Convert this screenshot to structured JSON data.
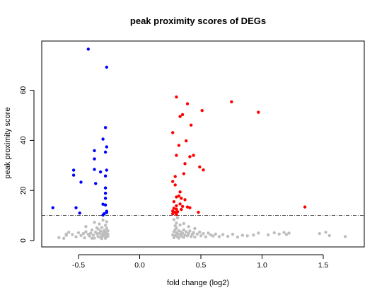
{
  "chart_data": {
    "type": "scatter",
    "title": "peak proximity scores of DEGs",
    "xlabel": "fold change (log2)",
    "ylabel": "peak proximity score",
    "xlim": [
      -0.72,
      1.7
    ],
    "ylim": [
      0,
      76.4
    ],
    "x_ticks": [
      -0.5,
      0.0,
      0.5,
      1.0,
      1.5
    ],
    "x_tick_labels": [
      "-0.5",
      "0.0",
      "0.5",
      "1.0",
      "1.5"
    ],
    "y_ticks": [
      0,
      20,
      40,
      60
    ],
    "y_tick_labels": [
      "0",
      "20",
      "40",
      "60"
    ],
    "threshold": {
      "y": 10,
      "style": "dot-dash",
      "color": "#444444"
    },
    "grid": false,
    "legend": "none",
    "colors": {
      "down": "#0000ff",
      "up": "#ff0000",
      "ns": "#bebebe"
    },
    "series": [
      {
        "color_key": "down",
        "points": [
          [
            -0.42,
            76.4
          ],
          [
            -0.27,
            69.2
          ],
          [
            -0.28,
            45.1
          ],
          [
            -0.3,
            40.5
          ],
          [
            -0.27,
            37.4
          ],
          [
            -0.28,
            35.3
          ],
          [
            -0.37,
            35.9
          ],
          [
            -0.37,
            32.6
          ],
          [
            -0.37,
            28.4
          ],
          [
            -0.54,
            28.1
          ],
          [
            -0.54,
            26.1
          ],
          [
            -0.32,
            27.4
          ],
          [
            -0.27,
            28.1
          ],
          [
            -0.28,
            25.8
          ],
          [
            -0.48,
            23.3
          ],
          [
            -0.36,
            22.8
          ],
          [
            -0.28,
            21.0
          ],
          [
            -0.28,
            18.9
          ],
          [
            -0.28,
            16.9
          ],
          [
            -0.3,
            14.5
          ],
          [
            -0.28,
            14.2
          ],
          [
            -0.71,
            13.1
          ],
          [
            -0.52,
            13.1
          ],
          [
            -0.27,
            11.7
          ],
          [
            -0.49,
            11.0
          ],
          [
            -0.29,
            10.7
          ],
          [
            -0.3,
            10.2
          ],
          [
            -0.27,
            11.2
          ]
        ]
      },
      {
        "color_key": "up",
        "points": [
          [
            0.3,
            57.3
          ],
          [
            0.75,
            55.4
          ],
          [
            0.39,
            54.6
          ],
          [
            0.51,
            51.9
          ],
          [
            0.97,
            51.2
          ],
          [
            0.35,
            50.3
          ],
          [
            0.33,
            49.5
          ],
          [
            0.42,
            46.1
          ],
          [
            0.27,
            43.1
          ],
          [
            0.38,
            39.8
          ],
          [
            0.32,
            38.0
          ],
          [
            0.3,
            34.0
          ],
          [
            0.41,
            33.5
          ],
          [
            0.44,
            34.0
          ],
          [
            0.37,
            30.7
          ],
          [
            0.49,
            29.4
          ],
          [
            0.52,
            28.2
          ],
          [
            0.36,
            26.7
          ],
          [
            0.29,
            25.6
          ],
          [
            0.27,
            23.6
          ],
          [
            0.29,
            22.2
          ],
          [
            0.33,
            19.4
          ],
          [
            0.32,
            17.8
          ],
          [
            0.34,
            16.9
          ],
          [
            0.3,
            17.4
          ],
          [
            0.37,
            16.3
          ],
          [
            0.28,
            15.5
          ],
          [
            0.33,
            14.6
          ],
          [
            0.3,
            13.9
          ],
          [
            0.35,
            13.6
          ],
          [
            0.39,
            13.4
          ],
          [
            0.41,
            13.1
          ],
          [
            0.28,
            12.9
          ],
          [
            0.3,
            12.5
          ],
          [
            0.34,
            12.4
          ],
          [
            0.27,
            11.8
          ],
          [
            0.31,
            11.5
          ],
          [
            0.29,
            11.3
          ],
          [
            0.27,
            10.7
          ],
          [
            0.3,
            10.4
          ],
          [
            0.48,
            11.3
          ],
          [
            1.35,
            13.4
          ]
        ]
      },
      {
        "color_key": "ns",
        "points": [
          [
            -0.66,
            1.2
          ],
          [
            -0.6,
            2.1
          ],
          [
            -0.58,
            3.3
          ],
          [
            -0.55,
            2.4
          ],
          [
            -0.52,
            1.5
          ],
          [
            -0.5,
            3.1
          ],
          [
            -0.48,
            2.0
          ],
          [
            -0.46,
            2.8
          ],
          [
            -0.45,
            1.1
          ],
          [
            -0.44,
            3.5
          ],
          [
            -0.42,
            2.5
          ],
          [
            -0.41,
            1.8
          ],
          [
            -0.4,
            3.0
          ],
          [
            -0.39,
            4.2
          ],
          [
            -0.38,
            2.2
          ],
          [
            -0.37,
            1.0
          ],
          [
            -0.36,
            3.4
          ],
          [
            -0.35,
            2.7
          ],
          [
            -0.34,
            4.6
          ],
          [
            -0.34,
            1.6
          ],
          [
            -0.33,
            2.9
          ],
          [
            -0.32,
            3.8
          ],
          [
            -0.32,
            1.3
          ],
          [
            -0.31,
            2.4
          ],
          [
            -0.31,
            5.2
          ],
          [
            -0.3,
            3.2
          ],
          [
            -0.3,
            1.9
          ],
          [
            -0.29,
            4.1
          ],
          [
            -0.29,
            2.6
          ],
          [
            -0.28,
            3.6
          ],
          [
            -0.28,
            1.4
          ],
          [
            -0.28,
            6.1
          ],
          [
            -0.27,
            2.2
          ],
          [
            -0.27,
            4.9
          ],
          [
            -0.27,
            3.0
          ],
          [
            -0.26,
            1.7
          ],
          [
            -0.26,
            3.9
          ],
          [
            -0.26,
            2.5
          ],
          [
            -0.37,
            7.3
          ],
          [
            -0.33,
            6.6
          ],
          [
            -0.3,
            8.2
          ],
          [
            -0.27,
            7.5
          ],
          [
            -0.44,
            5.6
          ],
          [
            -0.35,
            5.1
          ],
          [
            -0.39,
            0.9
          ],
          [
            -0.31,
            0.8
          ],
          [
            -0.28,
            0.9
          ],
          [
            0.27,
            2.3
          ],
          [
            0.28,
            3.6
          ],
          [
            0.28,
            1.2
          ],
          [
            0.29,
            4.4
          ],
          [
            0.29,
            2.0
          ],
          [
            0.3,
            3.1
          ],
          [
            0.3,
            5.0
          ],
          [
            0.31,
            1.5
          ],
          [
            0.31,
            2.7
          ],
          [
            0.32,
            3.9
          ],
          [
            0.32,
            1.0
          ],
          [
            0.33,
            2.4
          ],
          [
            0.34,
            3.4
          ],
          [
            0.34,
            1.8
          ],
          [
            0.35,
            2.9
          ],
          [
            0.36,
            4.3
          ],
          [
            0.36,
            1.3
          ],
          [
            0.37,
            2.2
          ],
          [
            0.38,
            3.5
          ],
          [
            0.39,
            1.9
          ],
          [
            0.4,
            2.8
          ],
          [
            0.41,
            3.8
          ],
          [
            0.42,
            1.6
          ],
          [
            0.43,
            2.5
          ],
          [
            0.44,
            3.2
          ],
          [
            0.45,
            1.4
          ],
          [
            0.47,
            2.6
          ],
          [
            0.49,
            3.4
          ],
          [
            0.5,
            1.9
          ],
          [
            0.52,
            2.8
          ],
          [
            0.54,
            1.5
          ],
          [
            0.56,
            3.0
          ],
          [
            0.58,
            2.3
          ],
          [
            0.6,
            1.8
          ],
          [
            0.62,
            2.6
          ],
          [
            0.65,
            1.6
          ],
          [
            0.68,
            2.4
          ],
          [
            0.72,
            1.7
          ],
          [
            0.76,
            2.5
          ],
          [
            0.8,
            1.4
          ],
          [
            0.84,
            2.1
          ],
          [
            0.88,
            1.9
          ],
          [
            0.3,
            7.0
          ],
          [
            0.33,
            6.2
          ],
          [
            0.28,
            8.4
          ],
          [
            0.31,
            9.1
          ],
          [
            0.36,
            6.8
          ],
          [
            0.4,
            5.6
          ],
          [
            0.29,
            5.9
          ],
          [
            0.45,
            4.8
          ],
          [
            0.93,
            2.2
          ],
          [
            0.97,
            3.0
          ],
          [
            1.05,
            2.3
          ],
          [
            1.1,
            3.1
          ],
          [
            1.14,
            2.6
          ],
          [
            1.18,
            3.2
          ],
          [
            1.2,
            2.4
          ],
          [
            1.22,
            3.0
          ],
          [
            1.47,
            2.8
          ],
          [
            1.52,
            3.3
          ],
          [
            1.55,
            2.0
          ],
          [
            1.68,
            1.6
          ],
          [
            -0.6,
            2.6
          ],
          [
            -0.62,
            0.9
          ]
        ]
      }
    ]
  }
}
